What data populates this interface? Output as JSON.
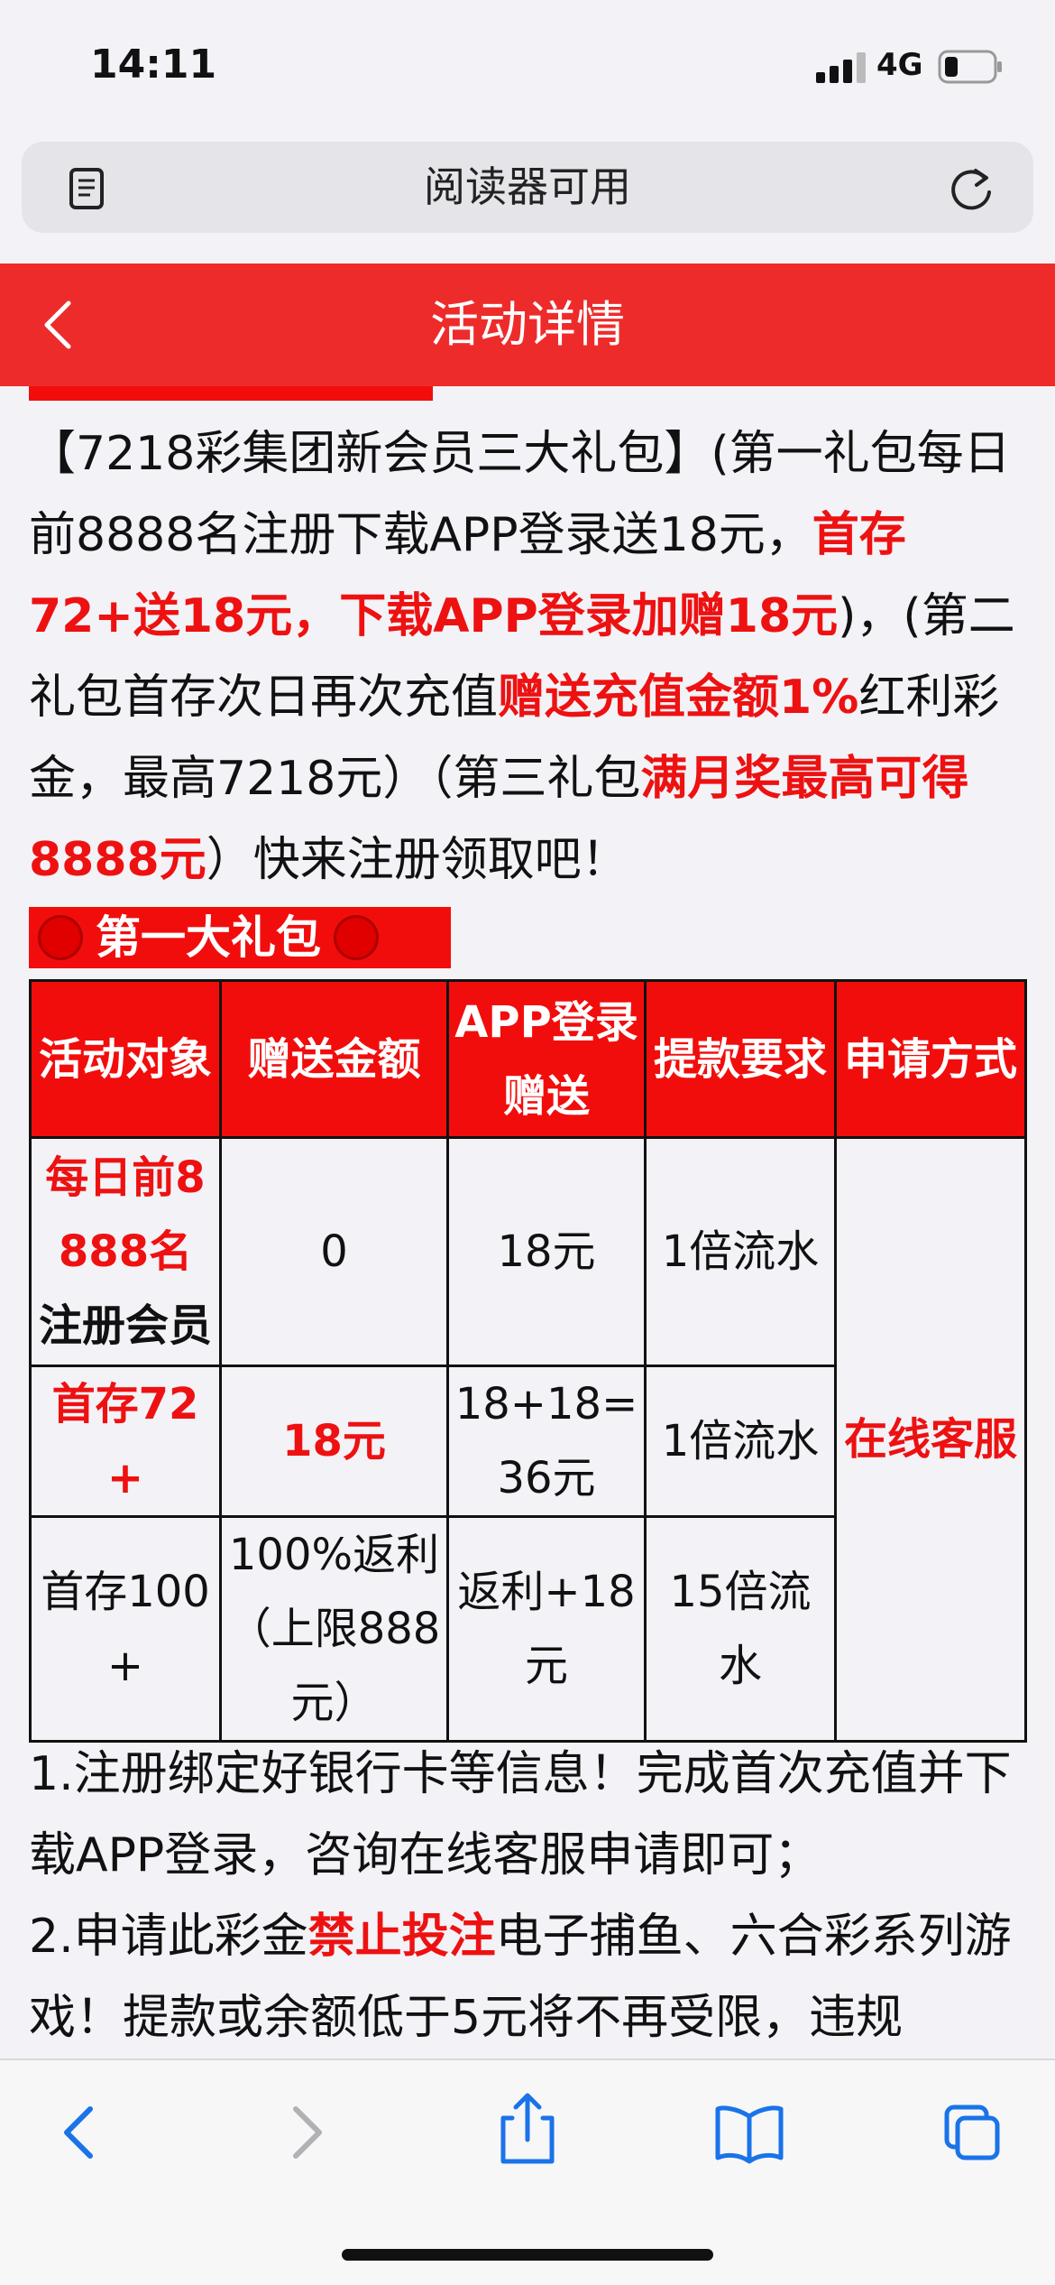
{
  "status_bar": {
    "time": "14:11",
    "network": "4G"
  },
  "url_bar": {
    "text": "阅读器可用"
  },
  "header": {
    "title": "活动详情"
  },
  "intro": [
    {
      "text": "【7218彩集团新会员三大礼包】(第一礼包每日前8888名注册下载APP登录送18元，",
      "em": false
    },
    {
      "text": "首存72+送18元，下载APP登录加赠18元",
      "em": true
    },
    {
      "text": ")，(第二礼包首存次日再次充值",
      "em": false
    },
    {
      "text": "赠送充值金额1%",
      "em": true
    },
    {
      "text": "红利彩金，最高7218元）（第三礼包",
      "em": false
    },
    {
      "text": "满月奖最高可得8888元",
      "em": true
    },
    {
      "text": "）快来注册领取吧！",
      "em": false
    }
  ],
  "section": {
    "title": "第一大礼包"
  },
  "table": {
    "headers": [
      "活动对象",
      "赠送金额",
      "APP登录赠送",
      "提款要求",
      "申请方式"
    ],
    "rows": [
      [
        [
          {
            "text": "每日前8888名",
            "style": "red"
          },
          {
            "text": "注册会员",
            "style": "bold"
          }
        ],
        [
          {
            "text": "0",
            "style": "plain"
          }
        ],
        [
          {
            "text": "18元",
            "style": "plain"
          }
        ],
        [
          {
            "text": "1倍流水",
            "style": "plain"
          }
        ]
      ],
      [
        [
          {
            "text": "首存72+",
            "style": "red"
          }
        ],
        [
          {
            "text": "18元",
            "style": "red"
          }
        ],
        [
          {
            "text": "18+18=36元",
            "style": "plain"
          }
        ],
        [
          {
            "text": "1倍流水",
            "style": "plain"
          }
        ]
      ],
      [
        [
          {
            "text": "首存100+",
            "style": "plain"
          }
        ],
        [
          {
            "text": "100%返利（上限888元）",
            "style": "plain"
          }
        ],
        [
          {
            "text": "返利+18元",
            "style": "plain"
          }
        ],
        [
          {
            "text": "15倍流水",
            "style": "plain"
          }
        ]
      ]
    ],
    "merged": {
      "text": "在线客服",
      "style": "red"
    }
  },
  "notes": [
    [
      {
        "text": "1.注册绑定好银行卡等信息！完成首次充值并下载APP登录，咨询在线客服申请即可；",
        "em": false
      }
    ],
    [
      {
        "text": "2.申请此彩金",
        "em": false
      },
      {
        "text": "禁止投注",
        "em": true
      },
      {
        "text": "电子捕鱼、六合彩系列游戏！提款或余额低于5元将不再受限，违规",
        "em": false
      }
    ]
  ]
}
